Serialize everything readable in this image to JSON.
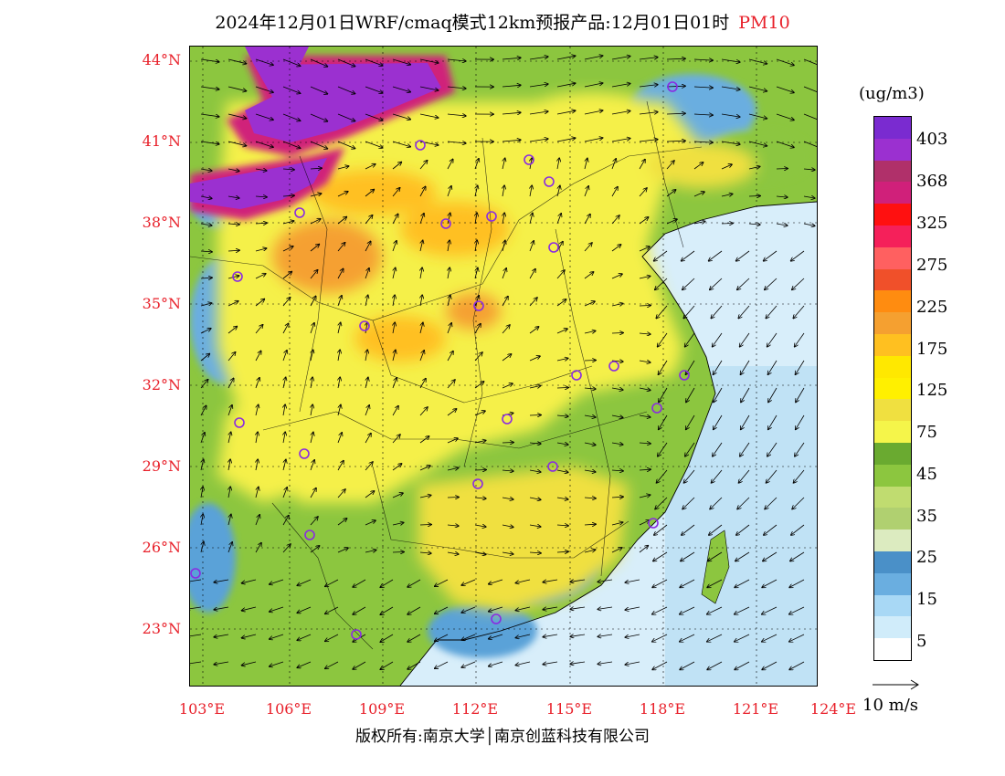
{
  "title": {
    "text": "2024年12月01日WRF/cmaq模式12km预报产品:12月01日01时",
    "variable": "PM10"
  },
  "map": {
    "latitude_labels": [
      "44°N",
      "41°N",
      "38°N",
      "35°N",
      "32°N",
      "29°N",
      "26°N",
      "23°N"
    ],
    "longitude_labels": [
      "103°E",
      "106°E",
      "109°E",
      "112°E",
      "115°E",
      "118°E",
      "121°E",
      "124°E"
    ],
    "colors": {
      "sea": "#d8eefa",
      "clean_blue": "#5aa2d8",
      "low_green": "#8cc63f",
      "yellow": "#f5f04a",
      "orange": "#f5a030",
      "purple": "#9b30d0",
      "station": "#8a2be2"
    }
  },
  "legend": {
    "unit": "(ug/m3)",
    "labels": [
      "403",
      "368",
      "325",
      "275",
      "225",
      "175",
      "125",
      "75",
      "45",
      "35",
      "25",
      "15",
      "5"
    ],
    "colors": [
      "#7a2bd0",
      "#9b30d0",
      "#b0306a",
      "#d0207a",
      "#ff1010",
      "#f5205a",
      "#ff6060",
      "#f0502a",
      "#ff8c10",
      "#f5a030",
      "#ffc020",
      "#ffe800",
      "#fff000",
      "#f0e040",
      "#f5f54a",
      "#6aaa30",
      "#8cc63f",
      "#c0dc70",
      "#b0d070",
      "#dcebc0",
      "#4a90c8",
      "#6aaee0",
      "#a8d8f5",
      "#d0ecfa",
      "#ffffff"
    ]
  },
  "wind": {
    "reference_label": "10 m/s"
  },
  "copyright": {
    "text": "版权所有:南京大学│南京创蓝科技有限公司"
  }
}
